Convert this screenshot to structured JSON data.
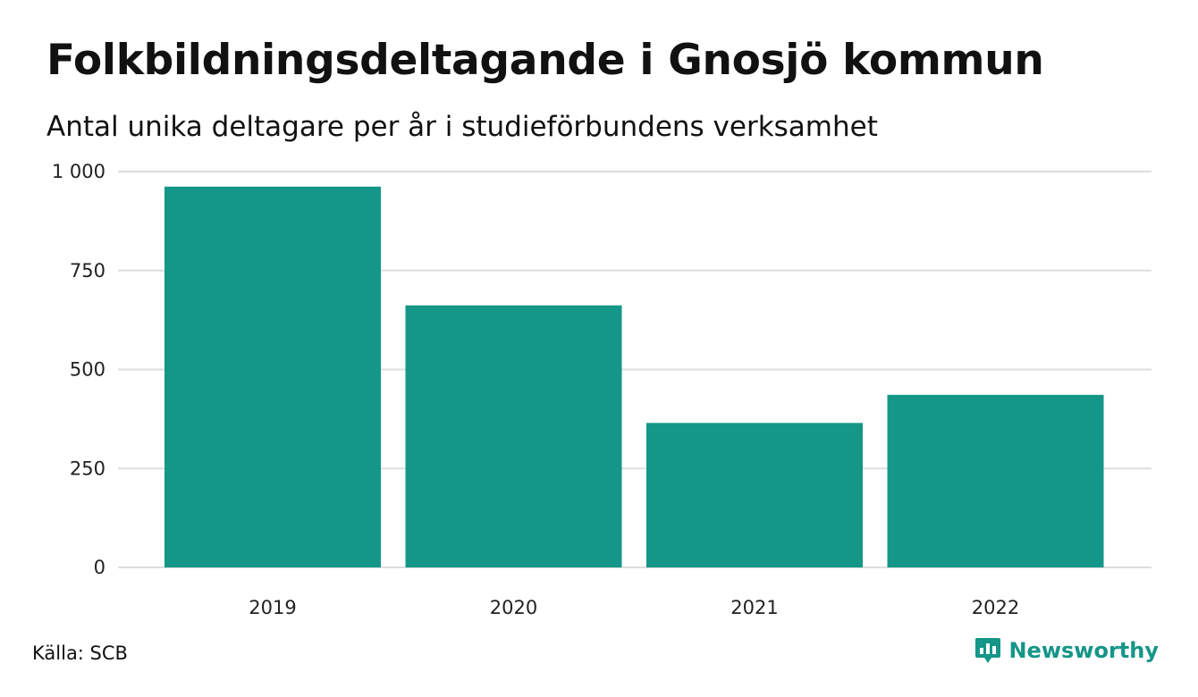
{
  "colors": {
    "bar": "#149688",
    "grid": "#dddddd",
    "brand": "#149688"
  },
  "header": {
    "title": "Folkbildningsdeltagande i Gnosjö kommun",
    "subtitle": "Antal unika deltagare per år i studieförbundens verksamhet"
  },
  "footer": {
    "source": "Källa: SCB",
    "brand": "Newsworthy",
    "brand_icon": "newsworthy-logo-icon"
  },
  "chart_data": {
    "type": "bar",
    "title": "Folkbildningsdeltagande i Gnosjö kommun",
    "subtitle": "Antal unika deltagare per år i studieförbundens verksamhet",
    "categories": [
      "2019",
      "2020",
      "2021",
      "2022"
    ],
    "values": [
      962,
      662,
      365,
      436
    ],
    "xlabel": "",
    "ylabel": "",
    "ylim": [
      0,
      1000
    ],
    "yticks": [
      0,
      250,
      500,
      750,
      1000
    ],
    "ytick_labels": [
      "0",
      "250",
      "500",
      "750",
      "1 000"
    ],
    "grid": true,
    "legend": "none"
  }
}
